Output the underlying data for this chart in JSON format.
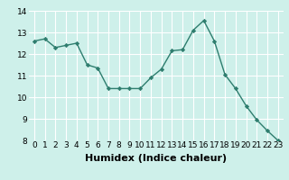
{
  "x": [
    0,
    1,
    2,
    3,
    4,
    5,
    6,
    7,
    8,
    9,
    10,
    11,
    12,
    13,
    14,
    15,
    16,
    17,
    18,
    19,
    20,
    21,
    22,
    23
  ],
  "y": [
    12.6,
    12.7,
    12.3,
    12.4,
    12.5,
    11.5,
    11.35,
    10.4,
    10.4,
    10.4,
    10.4,
    10.9,
    11.3,
    12.15,
    12.2,
    13.1,
    13.55,
    12.6,
    11.05,
    10.4,
    9.6,
    8.95,
    8.45,
    8.0
  ],
  "line_color": "#2e7d6e",
  "marker": "D",
  "marker_size": 2.2,
  "background_color": "#cef0ea",
  "grid_color": "#ffffff",
  "xlabel": "Humidex (Indice chaleur)",
  "ylim": [
    8,
    14
  ],
  "xlim": [
    -0.5,
    23.5
  ],
  "yticks": [
    8,
    9,
    10,
    11,
    12,
    13,
    14
  ],
  "xticks": [
    0,
    1,
    2,
    3,
    4,
    5,
    6,
    7,
    8,
    9,
    10,
    11,
    12,
    13,
    14,
    15,
    16,
    17,
    18,
    19,
    20,
    21,
    22,
    23
  ],
  "tick_fontsize": 6.5,
  "xlabel_fontsize": 8,
  "line_width": 1.0
}
